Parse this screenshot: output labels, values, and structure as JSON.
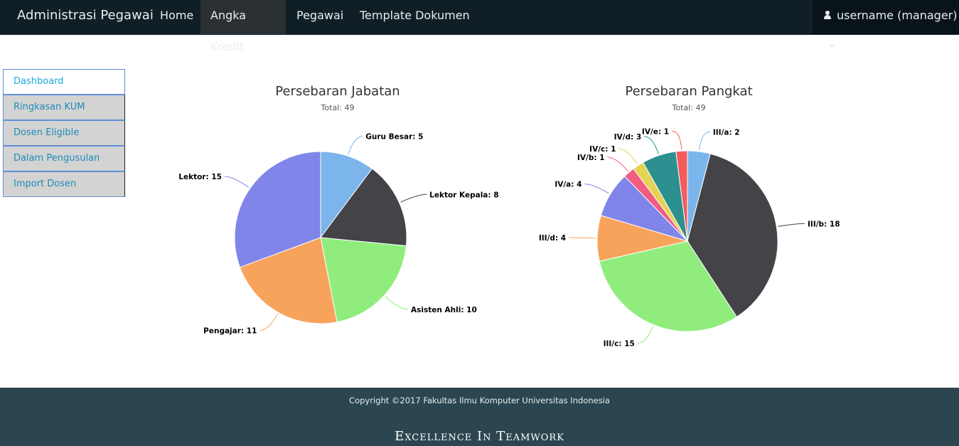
{
  "navbar": {
    "brand": "Administrasi Pegawai",
    "links": [
      "Home",
      "Angka Kredit",
      "Pegawai",
      "Template Dokumen"
    ],
    "user": "username (manager)"
  },
  "sidebar": {
    "items": [
      {
        "label": "Dashboard"
      },
      {
        "label": "Ringkasan KUM"
      },
      {
        "label": "Dosen Eligible"
      },
      {
        "label": "Dalam Pengusulan"
      },
      {
        "label": "Import Dosen"
      }
    ]
  },
  "chart_data": [
    {
      "type": "pie",
      "title": "Persebaran Jabatan",
      "subtitle": "Total: 49",
      "slices": [
        {
          "name": "Guru Besar",
          "value": 5,
          "label": "Guru Besar: 5",
          "color": "#7cb5ec"
        },
        {
          "name": "Lektor Kepala",
          "value": 8,
          "label": "Lektor Kepala: 8",
          "color": "#434348"
        },
        {
          "name": "Asisten Ahli",
          "value": 10,
          "label": "Asisten Ahli: 10",
          "color": "#90ed7d"
        },
        {
          "name": "Pengajar",
          "value": 11,
          "label": "Pengajar: 11",
          "color": "#f7a35c"
        },
        {
          "name": "Lektor",
          "value": 15,
          "label": "Lektor: 15",
          "color": "#8085e9"
        }
      ]
    },
    {
      "type": "pie",
      "title": "Persebaran Pangkat",
      "subtitle": "Total: 49",
      "slices": [
        {
          "name": "III/a",
          "value": 2,
          "label": "III/a: 2",
          "color": "#7cb5ec"
        },
        {
          "name": "III/b",
          "value": 18,
          "label": "III/b: 18",
          "color": "#434348"
        },
        {
          "name": "III/c",
          "value": 15,
          "label": "III/c: 15",
          "color": "#90ed7d"
        },
        {
          "name": "III/d",
          "value": 4,
          "label": "III/d: 4",
          "color": "#f7a35c"
        },
        {
          "name": "IV/a",
          "value": 4,
          "label": "IV/a: 4",
          "color": "#8085e9"
        },
        {
          "name": "IV/b",
          "value": 1,
          "label": "IV/b: 1",
          "color": "#f15c80"
        },
        {
          "name": "IV/c",
          "value": 1,
          "label": "IV/c: 1",
          "color": "#e4d354"
        },
        {
          "name": "IV/d",
          "value": 3,
          "label": "IV/d: 3",
          "color": "#2b908f"
        },
        {
          "name": "IV/e",
          "value": 1,
          "label": "IV/e: 1",
          "color": "#f45b5b"
        }
      ]
    }
  ],
  "footer": {
    "copyright": "Copyright ©2017 Fakultas Ilmu Komputer Universitas Indonesia",
    "motto": "Excellence In Teamwork"
  }
}
